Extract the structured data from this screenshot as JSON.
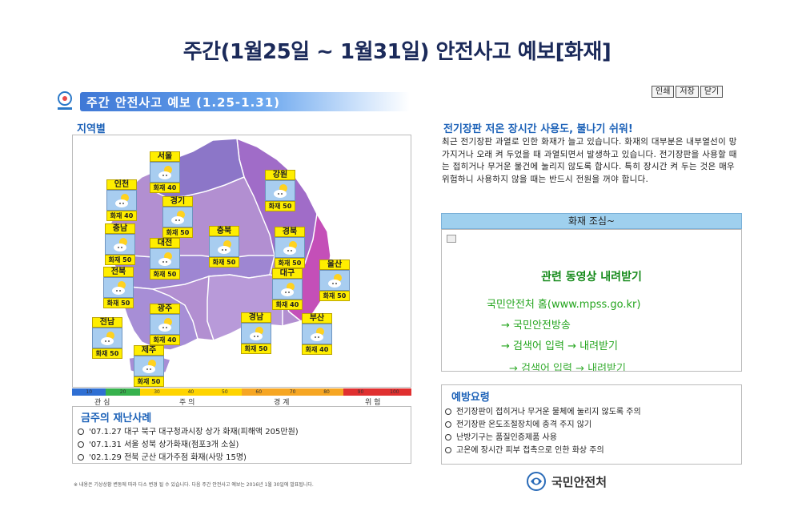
{
  "page_title": "주간(1월25일 ~ 1월31일) 안전사고 예보[화재]",
  "header": {
    "section_title": "주간 안전사고 예보 (1.25-1.31)"
  },
  "buttons": {
    "print": "인쇄",
    "save": "저장",
    "close": "닫기"
  },
  "region_section_label": "지역별",
  "regions": [
    {
      "name": "서울",
      "risk": "화재 40"
    },
    {
      "name": "인천",
      "risk": "화재 40"
    },
    {
      "name": "경기",
      "risk": "화재 50"
    },
    {
      "name": "강원",
      "risk": "화재 50"
    },
    {
      "name": "충남",
      "risk": "화재 50"
    },
    {
      "name": "대전",
      "risk": "화재 50"
    },
    {
      "name": "충북",
      "risk": "화재 50"
    },
    {
      "name": "경북",
      "risk": "화재 50"
    },
    {
      "name": "울산",
      "risk": "화재 50"
    },
    {
      "name": "전북",
      "risk": "화재 50"
    },
    {
      "name": "대구",
      "risk": "화재 40"
    },
    {
      "name": "광주",
      "risk": "화재 40"
    },
    {
      "name": "전남",
      "risk": "화재 50"
    },
    {
      "name": "경남",
      "risk": "화재 50"
    },
    {
      "name": "부산",
      "risk": "화재 40"
    },
    {
      "name": "제주",
      "risk": "화재 50"
    }
  ],
  "scale": {
    "ticks": [
      "10",
      "20",
      "30",
      "40",
      "50",
      "60",
      "70",
      "80",
      "90",
      "100"
    ],
    "colors": [
      "#2f6fd3",
      "#37b24d",
      "#ffd400",
      "#ffd400",
      "#ffd400",
      "#f6a623",
      "#f6a623",
      "#f6a623",
      "#e03030",
      "#e03030"
    ],
    "levels": [
      "관 심",
      "주 의",
      "경 계",
      "위 험"
    ]
  },
  "incidents": {
    "title": "금주의 재난사례",
    "items": [
      "'07.1.27 대구 북구 대구청과시장 상가 화재(피해액 205만원)",
      "'07.1.31 서울 성북 상가화재(점포3개 소실)",
      "'02.1.29 전북 군산 대가주점 화재(사망 15명)"
    ]
  },
  "footnote": "※ 내용은 기상상황 변동에 따라 다소 변경 될 수 있습니다. 다음 주간 안전사고 예보는 2016년 1월 30일에 발표됩니다.",
  "footer_org": "국민안전처",
  "headline": "전기장판 저온 장시간 사용도, 불나기 쉬워!",
  "description": "최근 전기장판 과열로 인한 화재가 늘고 있습니다. 화재의 대부분은 내부열선이 망가지거나 오래 켜 두었을 때 과열되면서 발생하고 있습니다. 전기장판을 사용할 때는 접히거나 무거운 물건에 눌리지 않도록 합시다. 특히 장시간 켜 두는 것은 매우 위험하니 사용하지 않을 때는 반드시 전원을 꺼야 합니다.",
  "notice_bar": "화재 조심~",
  "video": {
    "title": "관련 동영상 내려받기",
    "site": "국민안전처 홈(www.mpss.go.kr)",
    "step1": "→ 국민안전방송",
    "step2": "→ 검색어 입력 → 내려받기",
    "step3": "→ 검색어 입력 → 내려받기"
  },
  "prevention": {
    "title": "예방요령",
    "items": [
      "전기장판이 접히거나 무거운 물체에 눌리지 않도록 주의",
      "전기장판 온도조절장치에 충격 주지 않기",
      "난방기구는 품질인증제품 사용",
      "고온에 장시간 피부 접촉으로 인한 화상 주의"
    ]
  }
}
